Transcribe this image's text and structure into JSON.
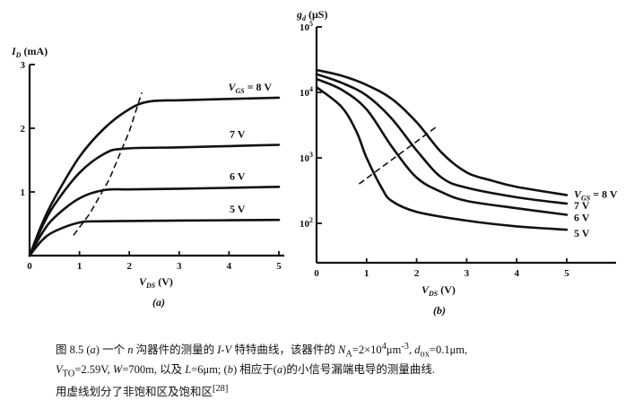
{
  "chart_data": [
    {
      "type": "line",
      "panel_label": "(a)",
      "xlabel": "V_DS (V)",
      "ylabel": "I_D (mA)",
      "xlim": [
        0,
        5
      ],
      "ylim": [
        0,
        3
      ],
      "xticks": [
        "0",
        "1",
        "2",
        "3",
        "4",
        "5"
      ],
      "yticks": [
        "1",
        "2",
        "3"
      ],
      "grid": false,
      "series": [
        {
          "name": "V_GS = 8 V",
          "x": [
            0,
            0.25,
            0.5,
            1,
            1.5,
            2,
            2.4,
            3,
            4,
            5
          ],
          "y": [
            0,
            0.5,
            0.9,
            1.55,
            2.0,
            2.3,
            2.42,
            2.44,
            2.46,
            2.48
          ]
        },
        {
          "name": "7 V",
          "x": [
            0,
            0.25,
            0.5,
            1,
            1.5,
            1.9,
            3,
            4,
            5
          ],
          "y": [
            0,
            0.45,
            0.8,
            1.3,
            1.6,
            1.68,
            1.7,
            1.72,
            1.74
          ]
        },
        {
          "name": "6 V",
          "x": [
            0,
            0.25,
            0.5,
            1,
            1.5,
            2,
            3,
            5
          ],
          "y": [
            0,
            0.35,
            0.6,
            0.9,
            1.03,
            1.04,
            1.05,
            1.08
          ]
        },
        {
          "name": "5 V",
          "x": [
            0,
            0.25,
            0.5,
            1,
            1.5,
            3,
            5
          ],
          "y": [
            0,
            0.24,
            0.38,
            0.52,
            0.54,
            0.55,
            0.56
          ]
        }
      ],
      "boundary_dashed": {
        "x": [
          0.88,
          1.2,
          1.6,
          2.0,
          2.25
        ],
        "y": [
          0.32,
          0.65,
          1.2,
          1.95,
          2.56
        ]
      }
    },
    {
      "type": "line",
      "panel_label": "(b)",
      "xlabel": "V_DS (V)",
      "ylabel": "g_d (μS)",
      "yscale": "log",
      "xlim": [
        0,
        5
      ],
      "ylim": [
        25,
        100000
      ],
      "xticks": [
        "0",
        "1",
        "2",
        "3",
        "4",
        "5"
      ],
      "yticks": [
        "10^2",
        "10^3",
        "10^4",
        "10^5"
      ],
      "grid": false,
      "series": [
        {
          "name": "V_GS = 8 V",
          "x": [
            0,
            0.5,
            1,
            1.5,
            2,
            2.5,
            3,
            3.5,
            4,
            5
          ],
          "y": [
            22000,
            18000,
            13000,
            8000,
            3500,
            1200,
            600,
            450,
            360,
            270
          ]
        },
        {
          "name": "7 V",
          "x": [
            0,
            0.5,
            1,
            1.5,
            2,
            2.5,
            3,
            4,
            5
          ],
          "y": [
            19000,
            14000,
            9000,
            4000,
            1300,
            500,
            350,
            250,
            200
          ]
        },
        {
          "name": "6 V",
          "x": [
            0,
            0.5,
            1,
            1.5,
            2,
            2.5,
            3,
            4,
            5
          ],
          "y": [
            16000,
            11000,
            5500,
            1500,
            500,
            300,
            220,
            170,
            135
          ]
        },
        {
          "name": "5 V",
          "x": [
            0,
            0.5,
            0.8,
            1,
            1.3,
            1.5,
            2,
            3,
            4,
            5
          ],
          "y": [
            12000,
            6000,
            2500,
            1000,
            350,
            220,
            150,
            110,
            90,
            80
          ]
        }
      ],
      "boundary_dashed": {
        "x": [
          0.85,
          2.4
        ],
        "y": [
          400,
          3000
        ]
      }
    }
  ],
  "caption": {
    "line1": [
      "图 8.5 (",
      "a",
      ") 一个 ",
      "n",
      " 沟器件的测量的 ",
      "I-V",
      " 特特曲线，该器件的 ",
      "N",
      "A",
      "=2×10",
      "4",
      "μm",
      "-3",
      ", ",
      "d",
      "ox",
      "=0.1μm,"
    ],
    "line2": [
      "V",
      "TO",
      "=2.59V, ",
      "W",
      "=700m, 以及 ",
      "L",
      "=6μm; (",
      "b",
      ") 相应于(",
      "a",
      ")的小信号漏端电导的测量曲线."
    ],
    "line3": [
      "用虚线划分了非饱和区及饱和区",
      "[28]"
    ]
  }
}
